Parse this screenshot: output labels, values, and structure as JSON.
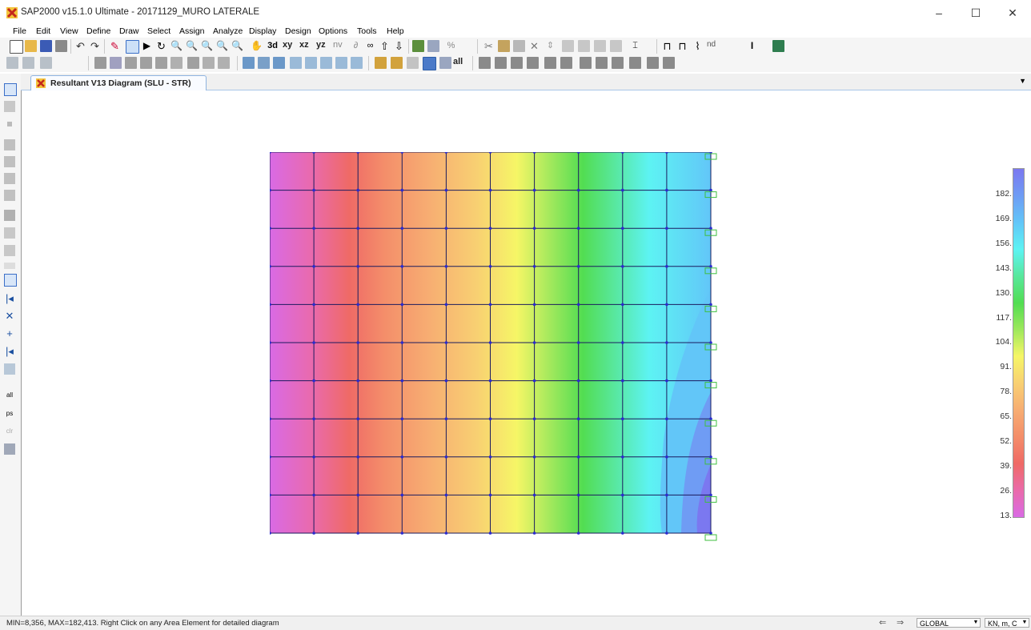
{
  "window": {
    "title": "SAP2000 v15.1.0 Ultimate  - 20171129_MURO LATERALE",
    "controls": [
      "–",
      "☐",
      "✕"
    ]
  },
  "menu": [
    "File",
    "Edit",
    "View",
    "Define",
    "Draw",
    "Select",
    "Assign",
    "Analyze",
    "Display",
    "Design",
    "Options",
    "Tools",
    "Help"
  ],
  "toolbar": {
    "text_buttons": {
      "xy": "xy",
      "xz": "xz",
      "yz": "yz",
      "nv": "nv",
      "nd": "nd",
      "all": "all"
    }
  },
  "document_tab": {
    "label": "Resultant V13 Diagram  (SLU - STR)"
  },
  "legend": {
    "labels": [
      "182.",
      "169.",
      "156.",
      "143.",
      "130.",
      "117.",
      "104.",
      "91.",
      "78.",
      "65.",
      "52.",
      "39.",
      "26.",
      "13."
    ],
    "colors": [
      "#7b78f0",
      "#6f9cf4",
      "#62c6f8",
      "#5df3f3",
      "#58e79c",
      "#52dd52",
      "#9ee85c",
      "#f6f666",
      "#f8d072",
      "#f7ad72",
      "#f48e6a",
      "#ef6a66",
      "#ea6aaa",
      "#d96ae5"
    ]
  },
  "status": {
    "text": "MIN=8,356, MAX=182,413. Right Click on any Area Element for detailed diagram",
    "coord_system": "GLOBAL",
    "units": "KN, m, C"
  },
  "colors": {
    "mesh_line": "#1b1b5e",
    "node": "#2a2ad0",
    "support": "#3fbf3f"
  }
}
